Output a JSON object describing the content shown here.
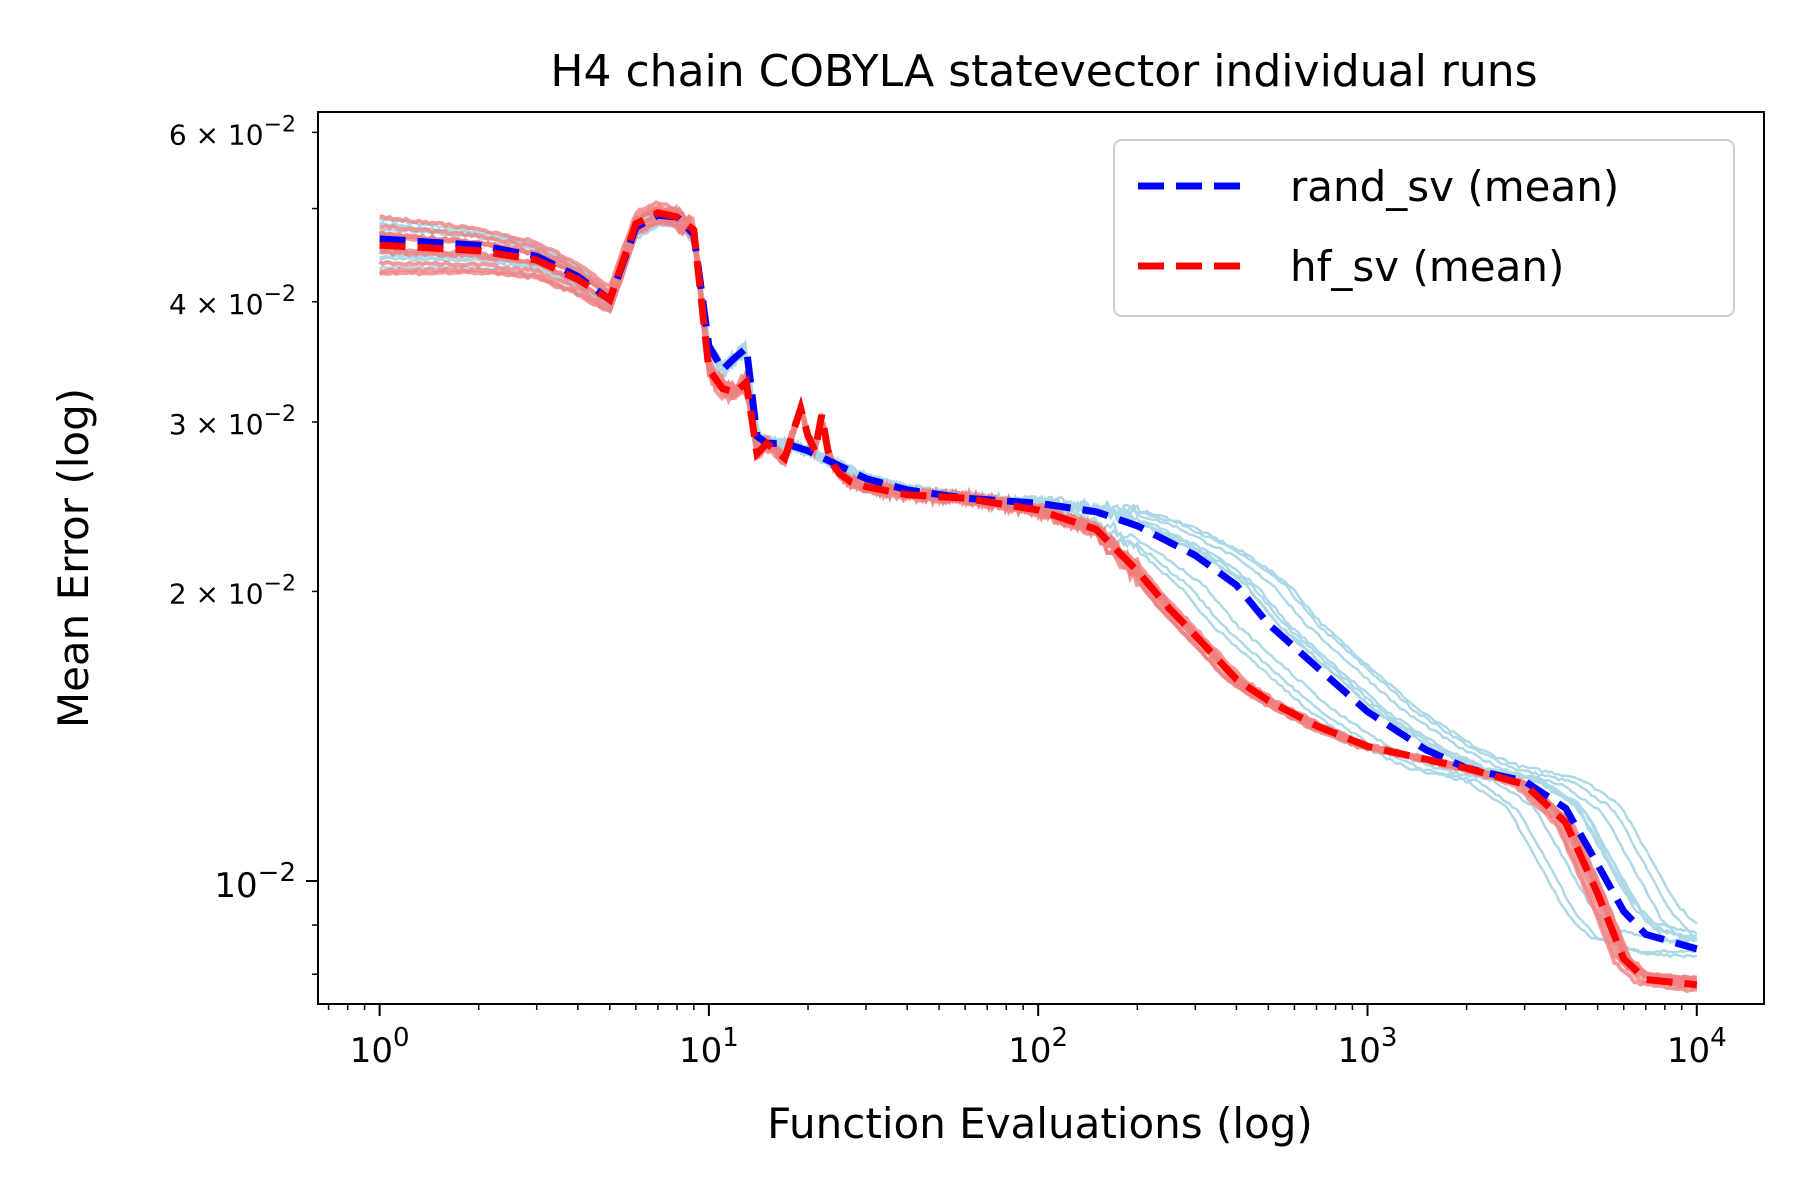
{
  "chart_data": {
    "type": "line",
    "title": "H4 chain COBYLA statevector individual runs",
    "xlabel": "Function Evaluations (log)",
    "ylabel": "Mean Error (log)",
    "xscale": "log",
    "yscale": "log",
    "xlim": [
      0.65,
      16000
    ],
    "ylim": [
      0.00745,
      0.063
    ],
    "grid": false,
    "legend_position": "top-right",
    "x_ticks": [
      {
        "value": 1,
        "base": "10",
        "exp": "0"
      },
      {
        "value": 10,
        "base": "10",
        "exp": "1"
      },
      {
        "value": 100,
        "base": "10",
        "exp": "2"
      },
      {
        "value": 1000,
        "base": "10",
        "exp": "3"
      },
      {
        "value": 10000,
        "base": "10",
        "exp": "4"
      }
    ],
    "y_ticks": [
      {
        "value": 0.01,
        "mant": "",
        "base": "10",
        "exp": "−2"
      },
      {
        "value": 0.02,
        "mant": "2 × ",
        "base": "10",
        "exp": "−2"
      },
      {
        "value": 0.03,
        "mant": "3 × ",
        "base": "10",
        "exp": "−2"
      },
      {
        "value": 0.04,
        "mant": "4 × ",
        "base": "10",
        "exp": "−2"
      },
      {
        "value": 0.06,
        "mant": "6 × ",
        "base": "10",
        "exp": "−2"
      }
    ],
    "x_minor_ticks": [
      0.7,
      0.8,
      0.9,
      2,
      3,
      4,
      5,
      6,
      7,
      8,
      9,
      20,
      30,
      40,
      50,
      60,
      70,
      80,
      90,
      200,
      300,
      400,
      500,
      600,
      700,
      800,
      900,
      2000,
      3000,
      4000,
      5000,
      6000,
      7000,
      8000,
      9000
    ],
    "y_minor_ticks": [
      0.008,
      0.009,
      0.05
    ],
    "colors": {
      "rand_sv": "#0000ff",
      "hf_sv": "#ff0000",
      "rand_runs": "#add8e6",
      "hf_runs": "#f08080"
    },
    "series": [
      {
        "name": "rand_sv (mean)",
        "key": "rand_sv",
        "x": [
          1,
          2,
          3,
          4,
          5,
          6,
          7,
          8,
          9,
          10,
          11,
          12,
          13,
          14,
          15,
          17,
          20,
          25,
          30,
          40,
          60,
          100,
          150,
          200,
          300,
          400,
          500,
          700,
          1000,
          1500,
          2000,
          3000,
          4000,
          5000,
          6000,
          7000,
          10000
        ],
        "y": [
          0.0465,
          0.0458,
          0.0446,
          0.0425,
          0.0402,
          0.0478,
          0.0492,
          0.049,
          0.047,
          0.036,
          0.034,
          0.035,
          0.0358,
          0.029,
          0.0285,
          0.0285,
          0.028,
          0.027,
          0.0262,
          0.0255,
          0.025,
          0.0247,
          0.0242,
          0.0234,
          0.0218,
          0.0203,
          0.0185,
          0.0167,
          0.015,
          0.0137,
          0.0131,
          0.0127,
          0.0119,
          0.0104,
          0.0093,
          0.0088,
          0.0085
        ]
      },
      {
        "name": "hf_sv (mean)",
        "key": "hf_sv",
        "x": [
          1,
          2,
          3,
          4,
          5,
          6,
          7,
          8,
          9,
          10,
          11,
          12,
          13,
          14,
          15,
          17,
          19,
          20,
          21,
          22,
          23,
          24,
          25,
          27,
          30,
          40,
          60,
          100,
          150,
          200,
          250,
          300,
          400,
          500,
          700,
          1000,
          2000,
          3000,
          4000,
          5000,
          6000,
          7000,
          10000
        ],
        "y": [
          0.0458,
          0.0452,
          0.0442,
          0.0422,
          0.0402,
          0.0482,
          0.0495,
          0.049,
          0.0475,
          0.034,
          0.0325,
          0.0322,
          0.033,
          0.0278,
          0.0285,
          0.0275,
          0.031,
          0.029,
          0.028,
          0.0305,
          0.028,
          0.027,
          0.0265,
          0.026,
          0.0257,
          0.0252,
          0.025,
          0.0243,
          0.0232,
          0.021,
          0.0192,
          0.018,
          0.0162,
          0.0154,
          0.0145,
          0.0138,
          0.0131,
          0.0126,
          0.0115,
          0.0097,
          0.0083,
          0.0079,
          0.0078
        ]
      }
    ]
  }
}
